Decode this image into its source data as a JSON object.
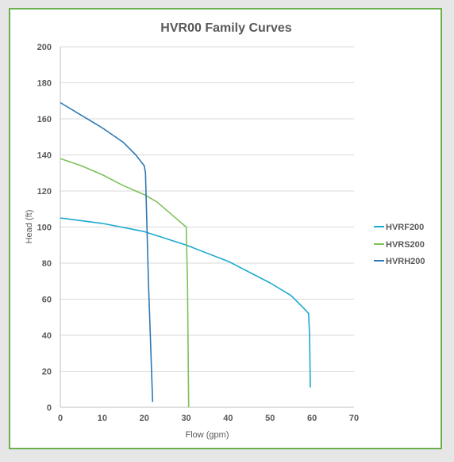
{
  "chart_data": {
    "type": "line",
    "title": "HVR00 Family Curves",
    "xlabel": "Flow (gpm)",
    "ylabel": "Head (ft)",
    "xlim": [
      0,
      70
    ],
    "ylim": [
      0,
      200
    ],
    "xticks": [
      0,
      10,
      20,
      30,
      40,
      50,
      60,
      70
    ],
    "yticks": [
      0,
      20,
      40,
      60,
      80,
      100,
      120,
      140,
      160,
      180,
      200
    ],
    "grid": "horizontal",
    "legend_position": "right",
    "series": [
      {
        "name": "HVRF200",
        "color": "#1ba9d0",
        "points": [
          [
            0,
            105
          ],
          [
            10,
            102
          ],
          [
            20,
            97.5
          ],
          [
            30,
            90
          ],
          [
            40,
            81
          ],
          [
            50,
            69
          ],
          [
            55,
            62
          ],
          [
            58,
            55
          ],
          [
            59.2,
            52
          ],
          [
            59.4,
            40
          ],
          [
            59.6,
            11
          ]
        ]
      },
      {
        "name": "HVRS200",
        "color": "#7cc15a",
        "points": [
          [
            0,
            138
          ],
          [
            5,
            134
          ],
          [
            10,
            129
          ],
          [
            15,
            123
          ],
          [
            20,
            118
          ],
          [
            23,
            114
          ],
          [
            26,
            108
          ],
          [
            28.5,
            103
          ],
          [
            30,
            100
          ],
          [
            30.3,
            70
          ],
          [
            30.6,
            0
          ]
        ]
      },
      {
        "name": "HVRH200",
        "color": "#2d78b4",
        "points": [
          [
            0,
            169
          ],
          [
            5,
            162
          ],
          [
            10,
            155
          ],
          [
            15,
            147
          ],
          [
            18,
            140
          ],
          [
            20,
            134
          ],
          [
            20.3,
            130
          ],
          [
            21,
            70
          ],
          [
            22,
            3
          ]
        ]
      }
    ]
  }
}
